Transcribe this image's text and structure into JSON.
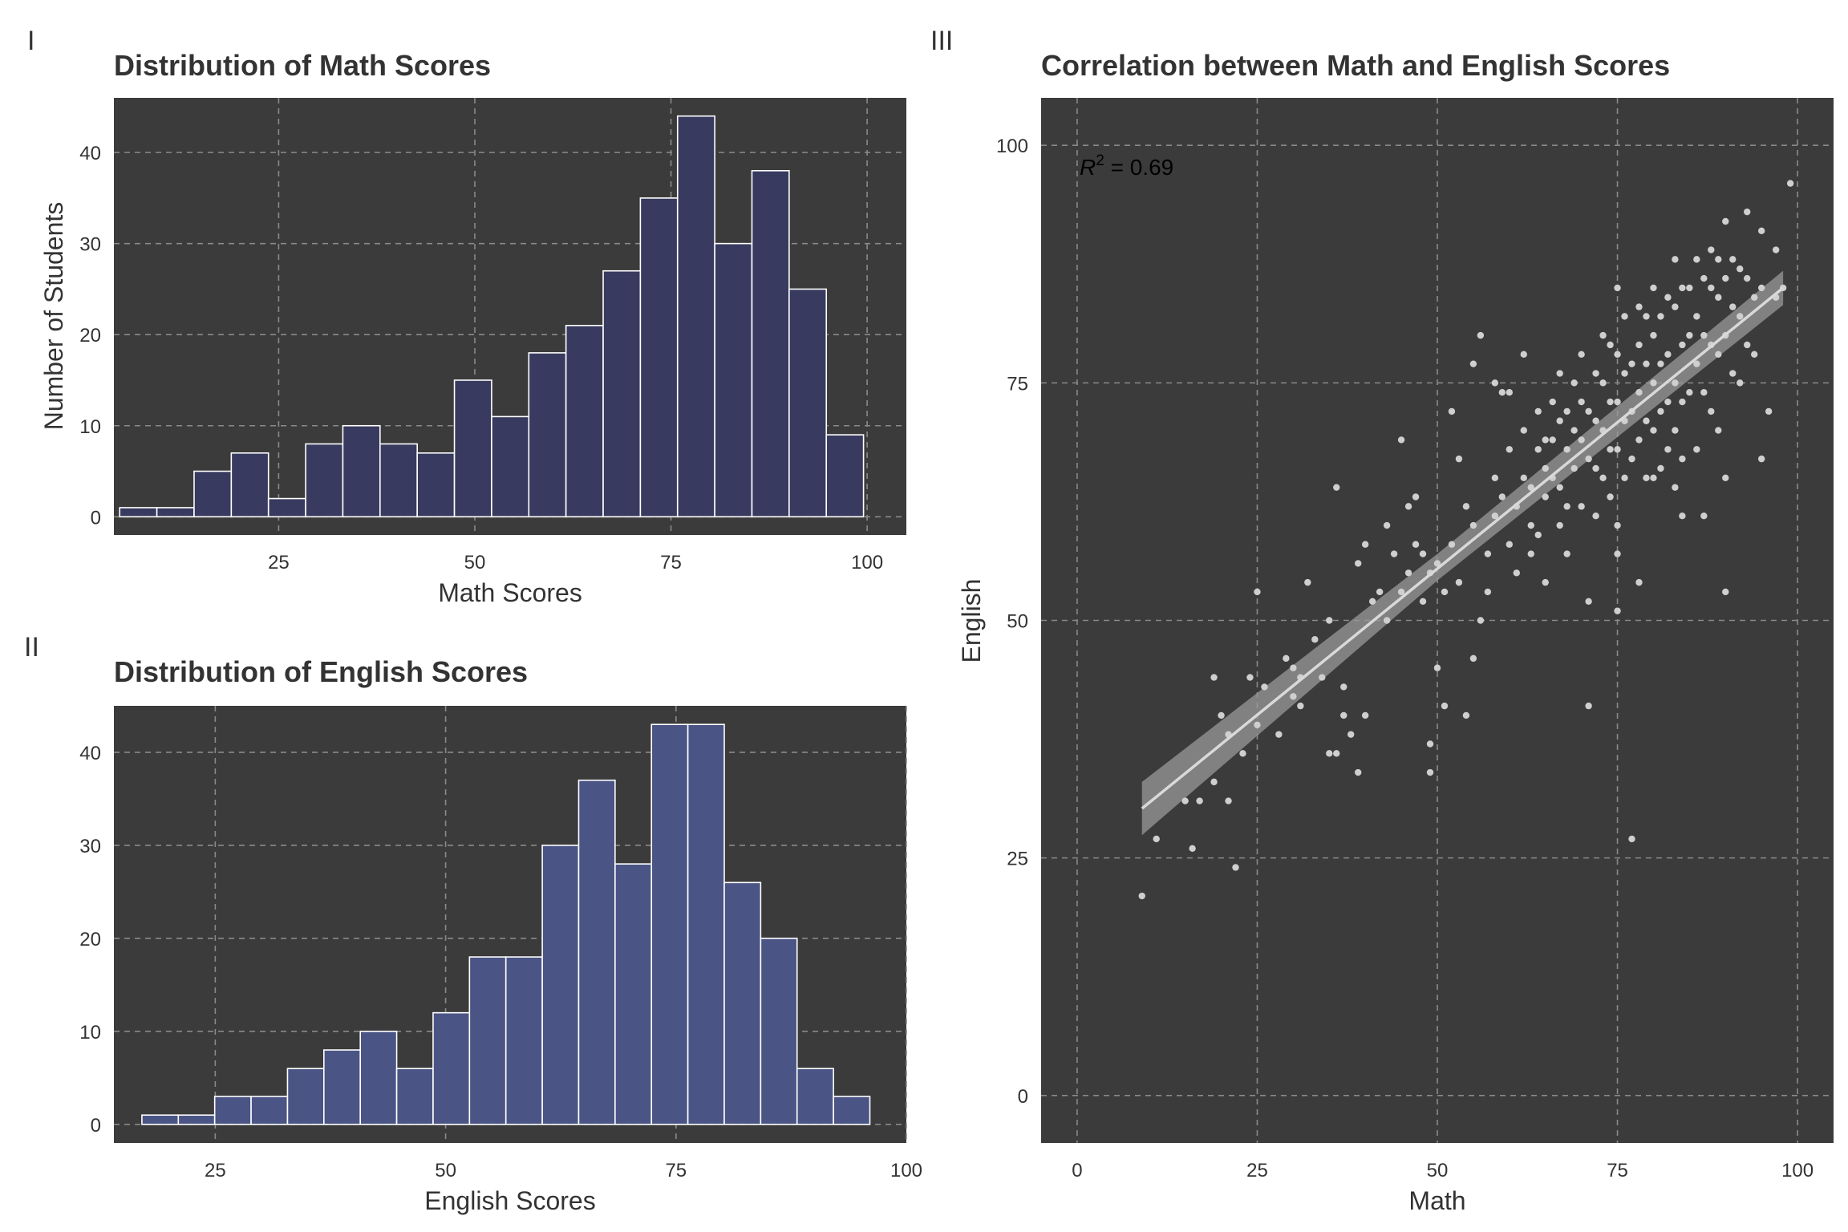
{
  "panel_tags": [
    "I",
    "II",
    "III"
  ],
  "colors": {
    "panel_bg": "#3b3b3b",
    "grid": "#8a8a8a",
    "math_bar": "#383a5f",
    "english_bar": "#4b5585",
    "bar_edge": "#ffffff",
    "point": "#cfcfcf",
    "fit_line": "#d9d9d9",
    "ribbon": "#9a9a9a",
    "text": "#333333"
  },
  "chart_data": [
    {
      "type": "bar",
      "title": "Distribution of Math Scores",
      "xlabel": "Math Scores",
      "ylabel": "Number of Students",
      "bin_width": 4.74,
      "bin_start": 4.74,
      "counts": [
        1,
        1,
        5,
        7,
        2,
        8,
        10,
        8,
        7,
        15,
        11,
        18,
        21,
        27,
        35,
        44,
        30,
        38,
        25,
        9
      ],
      "xlim": [
        4,
        105
      ],
      "ylim": [
        -2,
        46
      ],
      "x_ticks": [
        25,
        50,
        75,
        100
      ],
      "y_ticks": [
        0,
        10,
        20,
        30,
        40
      ],
      "grid": true
    },
    {
      "type": "bar",
      "title": "Distribution of English Scores",
      "xlabel": "English Scores",
      "ylabel": "",
      "bin_width": 3.95,
      "bin_start": 17.04,
      "counts": [
        1,
        1,
        3,
        3,
        6,
        8,
        10,
        6,
        12,
        18,
        18,
        30,
        37,
        28,
        43,
        43,
        26,
        20,
        6,
        3
      ],
      "xlim": [
        14,
        100
      ],
      "ylim": [
        -2,
        45
      ],
      "x_ticks": [
        25,
        50,
        75,
        100
      ],
      "y_ticks": [
        0,
        10,
        20,
        30,
        40
      ],
      "grid": true
    },
    {
      "type": "scatter",
      "title": "Correlation between Math and English Scores",
      "xlabel": "Math",
      "ylabel": "English",
      "annotation_symbol": "R",
      "annotation_superscript": "2",
      "annotation_value": " = 0.69",
      "xlim": [
        -5,
        105
      ],
      "ylim": [
        -5,
        105
      ],
      "x_ticks": [
        0,
        25,
        50,
        75,
        100
      ],
      "y_ticks": [
        0,
        25,
        50,
        75,
        100
      ],
      "grid": true,
      "fit_line": {
        "x": [
          9,
          98
        ],
        "y": [
          30.2,
          85.0
        ]
      },
      "ribbon": {
        "x": [
          9,
          50,
          98
        ],
        "lower": [
          27.4,
          54.2,
          83.2
        ],
        "upper": [
          33.0,
          57.0,
          86.8
        ]
      },
      "points": [
        [
          9,
          21
        ],
        [
          11,
          27
        ],
        [
          15,
          31
        ],
        [
          16,
          26
        ],
        [
          17,
          31
        ],
        [
          19,
          44
        ],
        [
          19,
          33
        ],
        [
          20,
          40
        ],
        [
          21,
          38
        ],
        [
          21,
          31
        ],
        [
          22,
          24
        ],
        [
          23,
          36
        ],
        [
          24,
          44
        ],
        [
          25,
          39
        ],
        [
          25,
          53
        ],
        [
          26,
          43
        ],
        [
          28,
          38
        ],
        [
          29,
          46
        ],
        [
          30,
          45
        ],
        [
          30,
          42
        ],
        [
          31,
          41
        ],
        [
          31,
          44
        ],
        [
          32,
          54
        ],
        [
          33,
          48
        ],
        [
          34,
          44
        ],
        [
          35,
          50
        ],
        [
          35,
          36
        ],
        [
          36,
          36
        ],
        [
          36,
          64
        ],
        [
          37,
          43
        ],
        [
          37,
          40
        ],
        [
          38,
          38
        ],
        [
          39,
          56
        ],
        [
          39,
          34
        ],
        [
          40,
          58
        ],
        [
          40,
          40
        ],
        [
          41,
          52
        ],
        [
          42,
          53
        ],
        [
          43,
          60
        ],
        [
          43,
          50
        ],
        [
          44,
          57
        ],
        [
          45,
          69
        ],
        [
          45,
          53
        ],
        [
          46,
          62
        ],
        [
          46,
          55
        ],
        [
          47,
          63
        ],
        [
          47,
          58
        ],
        [
          48,
          57
        ],
        [
          48,
          52
        ],
        [
          49,
          55
        ],
        [
          49,
          37
        ],
        [
          49,
          34
        ],
        [
          50,
          45
        ],
        [
          50,
          56
        ],
        [
          51,
          41
        ],
        [
          51,
          53
        ],
        [
          52,
          72
        ],
        [
          52,
          58
        ],
        [
          53,
          54
        ],
        [
          53,
          67
        ],
        [
          54,
          62
        ],
        [
          54,
          40
        ],
        [
          55,
          77
        ],
        [
          55,
          60
        ],
        [
          55,
          46
        ],
        [
          56,
          50
        ],
        [
          56,
          80
        ],
        [
          57,
          57
        ],
        [
          57,
          53
        ],
        [
          58,
          75
        ],
        [
          58,
          65
        ],
        [
          58,
          61
        ],
        [
          59,
          74
        ],
        [
          59,
          63
        ],
        [
          60,
          74
        ],
        [
          60,
          68
        ],
        [
          60,
          58
        ],
        [
          61,
          62
        ],
        [
          61,
          55
        ],
        [
          62,
          78
        ],
        [
          62,
          70
        ],
        [
          62,
          65
        ],
        [
          63,
          64
        ],
        [
          63,
          60
        ],
        [
          63,
          57
        ],
        [
          64,
          72
        ],
        [
          64,
          68
        ],
        [
          64,
          59
        ],
        [
          65,
          69
        ],
        [
          65,
          66
        ],
        [
          65,
          63
        ],
        [
          65,
          54
        ],
        [
          66,
          73
        ],
        [
          66,
          69
        ],
        [
          66,
          65
        ],
        [
          67,
          76
        ],
        [
          67,
          71
        ],
        [
          67,
          64
        ],
        [
          67,
          60
        ],
        [
          68,
          72
        ],
        [
          68,
          68
        ],
        [
          68,
          62
        ],
        [
          68,
          57
        ],
        [
          69,
          75
        ],
        [
          69,
          70
        ],
        [
          69,
          66
        ],
        [
          70,
          78
        ],
        [
          70,
          73
        ],
        [
          70,
          69
        ],
        [
          70,
          62
        ],
        [
          71,
          72
        ],
        [
          71,
          67
        ],
        [
          71,
          52
        ],
        [
          71,
          41
        ],
        [
          72,
          76
        ],
        [
          72,
          71
        ],
        [
          72,
          66
        ],
        [
          72,
          61
        ],
        [
          73,
          80
        ],
        [
          73,
          75
        ],
        [
          73,
          70
        ],
        [
          73,
          65
        ],
        [
          74,
          79
        ],
        [
          74,
          73
        ],
        [
          74,
          68
        ],
        [
          74,
          63
        ],
        [
          75,
          85
        ],
        [
          75,
          78
        ],
        [
          75,
          73
        ],
        [
          75,
          68
        ],
        [
          75,
          60
        ],
        [
          75,
          57
        ],
        [
          75,
          51
        ],
        [
          76,
          82
        ],
        [
          76,
          76
        ],
        [
          76,
          71
        ],
        [
          76,
          65
        ],
        [
          77,
          77
        ],
        [
          77,
          72
        ],
        [
          77,
          67
        ],
        [
          77,
          27
        ],
        [
          78,
          83
        ],
        [
          78,
          79
        ],
        [
          78,
          74
        ],
        [
          78,
          69
        ],
        [
          78,
          54
        ],
        [
          79,
          82
        ],
        [
          79,
          77
        ],
        [
          79,
          71
        ],
        [
          79,
          65
        ],
        [
          80,
          85
        ],
        [
          80,
          80
        ],
        [
          80,
          75
        ],
        [
          80,
          70
        ],
        [
          80,
          65
        ],
        [
          81,
          82
        ],
        [
          81,
          77
        ],
        [
          81,
          72
        ],
        [
          81,
          66
        ],
        [
          82,
          84
        ],
        [
          82,
          78
        ],
        [
          82,
          73
        ],
        [
          82,
          68
        ],
        [
          83,
          88
        ],
        [
          83,
          83
        ],
        [
          83,
          75
        ],
        [
          83,
          70
        ],
        [
          83,
          64
        ],
        [
          84,
          85
        ],
        [
          84,
          79
        ],
        [
          84,
          73
        ],
        [
          84,
          67
        ],
        [
          84,
          61
        ],
        [
          85,
          85
        ],
        [
          85,
          80
        ],
        [
          85,
          74
        ],
        [
          86,
          88
        ],
        [
          86,
          82
        ],
        [
          86,
          77
        ],
        [
          86,
          68
        ],
        [
          87,
          86
        ],
        [
          87,
          80
        ],
        [
          87,
          74
        ],
        [
          87,
          61
        ],
        [
          88,
          89
        ],
        [
          88,
          85
        ],
        [
          88,
          79
        ],
        [
          88,
          72
        ],
        [
          89,
          88
        ],
        [
          89,
          84
        ],
        [
          89,
          78
        ],
        [
          89,
          70
        ],
        [
          90,
          92
        ],
        [
          90,
          86
        ],
        [
          90,
          80
        ],
        [
          90,
          65
        ],
        [
          90,
          53
        ],
        [
          91,
          88
        ],
        [
          91,
          83
        ],
        [
          91,
          76
        ],
        [
          92,
          87
        ],
        [
          92,
          82
        ],
        [
          92,
          75
        ],
        [
          93,
          93
        ],
        [
          93,
          86
        ],
        [
          93,
          79
        ],
        [
          94,
          84
        ],
        [
          94,
          78
        ],
        [
          95,
          91
        ],
        [
          95,
          85
        ],
        [
          95,
          67
        ],
        [
          96,
          72
        ],
        [
          97,
          89
        ],
        [
          97,
          84
        ],
        [
          98,
          85
        ],
        [
          99,
          96
        ]
      ]
    }
  ]
}
